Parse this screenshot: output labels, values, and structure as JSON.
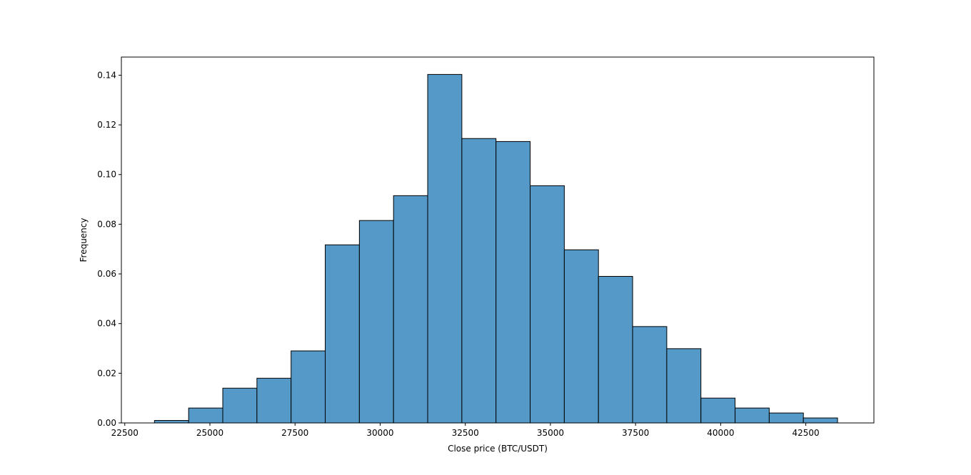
{
  "chart_data": {
    "type": "bar",
    "subtype": "histogram",
    "title": "",
    "xlabel": "Close price (BTC/USDT)",
    "ylabel": "Frequency",
    "xlim": [
      22400,
      44500
    ],
    "ylim": [
      0,
      0.1473
    ],
    "grid": false,
    "legend": "none",
    "bar_color": "#5499c7",
    "edge_color": "#000000",
    "bins": [
      {
        "x0": 23372,
        "x1": 24375,
        "value": 0.001
      },
      {
        "x0": 24375,
        "x1": 25378,
        "value": 0.006
      },
      {
        "x0": 25378,
        "x1": 26381,
        "value": 0.014
      },
      {
        "x0": 26381,
        "x1": 27384,
        "value": 0.018
      },
      {
        "x0": 27384,
        "x1": 28387,
        "value": 0.029
      },
      {
        "x0": 28387,
        "x1": 29390,
        "value": 0.0717
      },
      {
        "x0": 29390,
        "x1": 30393,
        "value": 0.0815
      },
      {
        "x0": 30393,
        "x1": 31396,
        "value": 0.0915
      },
      {
        "x0": 31396,
        "x1": 32399,
        "value": 0.1403
      },
      {
        "x0": 32399,
        "x1": 33402,
        "value": 0.1145
      },
      {
        "x0": 33402,
        "x1": 34405,
        "value": 0.1133
      },
      {
        "x0": 34405,
        "x1": 35408,
        "value": 0.0955
      },
      {
        "x0": 35408,
        "x1": 36411,
        "value": 0.0697
      },
      {
        "x0": 36411,
        "x1": 37414,
        "value": 0.059
      },
      {
        "x0": 37414,
        "x1": 38417,
        "value": 0.0388
      },
      {
        "x0": 38417,
        "x1": 39420,
        "value": 0.0299
      },
      {
        "x0": 39420,
        "x1": 40423,
        "value": 0.01
      },
      {
        "x0": 40423,
        "x1": 41426,
        "value": 0.006
      },
      {
        "x0": 41426,
        "x1": 42429,
        "value": 0.004
      },
      {
        "x0": 42429,
        "x1": 43432,
        "value": 0.002
      }
    ],
    "xticks": [
      {
        "value": 22500,
        "label": "22500"
      },
      {
        "value": 25000,
        "label": "25000"
      },
      {
        "value": 27500,
        "label": "27500"
      },
      {
        "value": 30000,
        "label": "30000"
      },
      {
        "value": 32500,
        "label": "32500"
      },
      {
        "value": 35000,
        "label": "35000"
      },
      {
        "value": 37500,
        "label": "37500"
      },
      {
        "value": 40000,
        "label": "40000"
      },
      {
        "value": 42500,
        "label": "42500"
      }
    ],
    "yticks": [
      {
        "value": 0.0,
        "label": "0.00"
      },
      {
        "value": 0.02,
        "label": "0.02"
      },
      {
        "value": 0.04,
        "label": "0.04"
      },
      {
        "value": 0.06,
        "label": "0.06"
      },
      {
        "value": 0.08,
        "label": "0.08"
      },
      {
        "value": 0.1,
        "label": "0.10"
      },
      {
        "value": 0.12,
        "label": "0.12"
      },
      {
        "value": 0.14,
        "label": "0.14"
      }
    ]
  }
}
